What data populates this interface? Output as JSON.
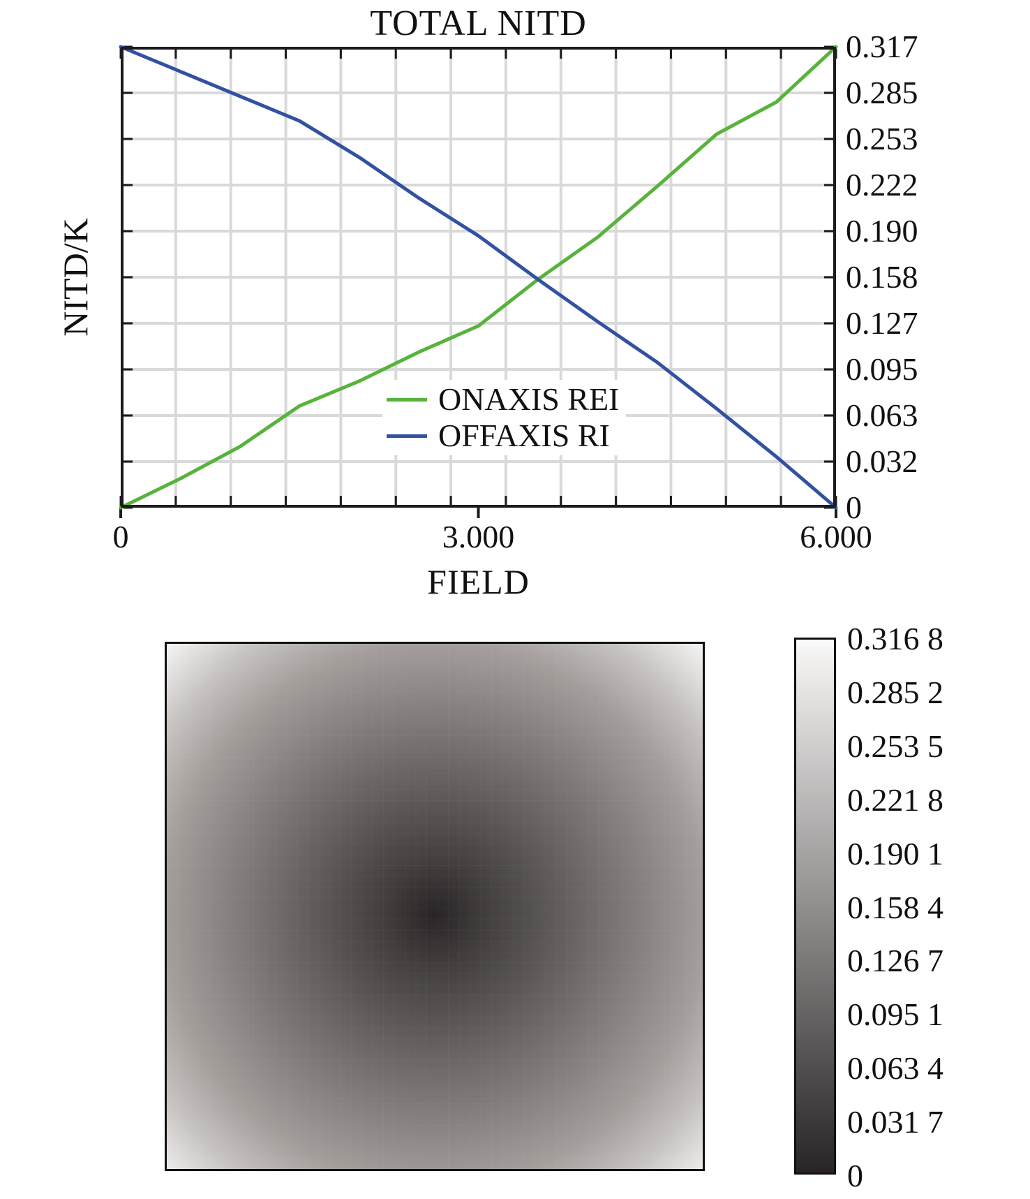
{
  "figure": {
    "background": "#ffffff",
    "text_color": "#111111",
    "axis_color": "#1c1c1c",
    "grid_color": "#d9d9d9"
  },
  "chart_data": [
    {
      "type": "line",
      "title": "TOTAL NITD",
      "xlabel": "FIELD",
      "ylabel": "NITD/K",
      "xlim": [
        0,
        6
      ],
      "ylim": [
        0,
        0.317
      ],
      "grid": true,
      "x_grid_divisions": 13,
      "y_grid_divisions": 10,
      "legend_position": "inside lower-right",
      "x_tick_labels": [
        {
          "label": "0",
          "value": 0
        },
        {
          "label": "3.000",
          "value": 3
        },
        {
          "label": "6.000",
          "value": 6
        }
      ],
      "y_tick_labels": [
        {
          "label": "0.317",
          "value": 0.317
        },
        {
          "label": "0.285",
          "value": 0.285
        },
        {
          "label": "0.253",
          "value": 0.253
        },
        {
          "label": "0.222",
          "value": 0.222
        },
        {
          "label": "0.190",
          "value": 0.19
        },
        {
          "label": "0.158",
          "value": 0.158
        },
        {
          "label": "0.127",
          "value": 0.127
        },
        {
          "label": "0.095",
          "value": 0.095
        },
        {
          "label": "0.063",
          "value": 0.063
        },
        {
          "label": "0.032",
          "value": 0.032
        },
        {
          "label": "0",
          "value": 0
        }
      ],
      "x": [
        0,
        0.5,
        1.0,
        1.5,
        2.0,
        2.5,
        3.0,
        3.5,
        4.0,
        4.5,
        5.0,
        5.5,
        6.0
      ],
      "series": [
        {
          "name": "ONAXIS REI",
          "color": "#57b33c",
          "values": [
            0,
            0.02,
            0.042,
            0.07,
            0.087,
            0.107,
            0.125,
            0.157,
            0.186,
            0.221,
            0.257,
            0.279,
            0.317
          ]
        },
        {
          "name": "OFFAXIS RI",
          "color": "#3351a2",
          "values": [
            0.317,
            0.3,
            0.283,
            0.266,
            0.241,
            0.213,
            0.187,
            0.157,
            0.128,
            0.1,
            0.068,
            0.035,
            0
          ]
        }
      ]
    },
    {
      "type": "heatmap",
      "description": "TOTAL NITD over square field of view: value 0 (dark) at a point just below center, increasing radially to 0.3168 (light) at the corners",
      "value_min": 0,
      "value_max": 0.3168,
      "center": {
        "x_frac": 0.5,
        "y_frac": 0.515
      },
      "dark_color": "#292425",
      "light_color": "#f5f4f3",
      "gradient_stops": [
        [
          "#292425",
          0
        ],
        [
          "#443f3f",
          0.14
        ],
        [
          "#575252",
          0.26
        ],
        [
          "#6e6967",
          0.4
        ],
        [
          "#878280",
          0.55
        ],
        [
          "#a39e9b",
          0.71
        ],
        [
          "#c7c3c1",
          0.85
        ],
        [
          "#eae8e7",
          0.96
        ],
        [
          "#f5f4f3",
          1
        ]
      ],
      "colorbar_tick_labels": [
        "0.316 8",
        "0.285 2",
        "0.253 5",
        "0.221 8",
        "0.190 1",
        "0.158 4",
        "0.126 7",
        "0.095 1",
        "0.063 4",
        "0.031 7",
        "0"
      ]
    }
  ]
}
